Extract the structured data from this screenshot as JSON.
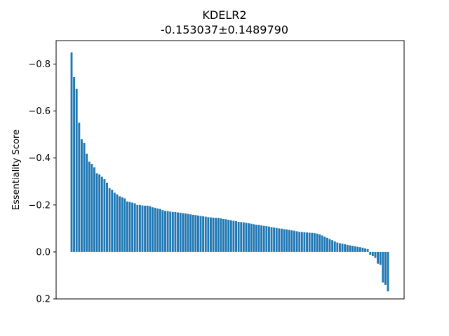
{
  "chart_data": {
    "type": "bar",
    "title": "KDELR2",
    "subtitle": "-0.153037±0.1489790",
    "xlabel": "",
    "ylabel": "Essentiality Score",
    "y_inverted": true,
    "ylim": [
      0.2,
      -0.9
    ],
    "yticks": [
      -0.8,
      -0.6,
      -0.4,
      -0.2,
      0.0,
      0.2
    ],
    "ytick_labels": [
      "−0.8",
      "−0.6",
      "−0.4",
      "−0.2",
      "0.0",
      "0.2"
    ],
    "bar_color": "#1f77b4",
    "grid": false,
    "values": [
      -0.85,
      -0.745,
      -0.695,
      -0.55,
      -0.48,
      -0.465,
      -0.418,
      -0.385,
      -0.375,
      -0.36,
      -0.335,
      -0.33,
      -0.32,
      -0.31,
      -0.295,
      -0.272,
      -0.265,
      -0.252,
      -0.245,
      -0.237,
      -0.233,
      -0.228,
      -0.215,
      -0.213,
      -0.21,
      -0.207,
      -0.2,
      -0.2,
      -0.198,
      -0.197,
      -0.197,
      -0.195,
      -0.19,
      -0.188,
      -0.185,
      -0.183,
      -0.178,
      -0.175,
      -0.174,
      -0.172,
      -0.17,
      -0.17,
      -0.168,
      -0.167,
      -0.165,
      -0.164,
      -0.162,
      -0.16,
      -0.158,
      -0.157,
      -0.155,
      -0.153,
      -0.152,
      -0.15,
      -0.148,
      -0.147,
      -0.146,
      -0.145,
      -0.145,
      -0.143,
      -0.14,
      -0.139,
      -0.137,
      -0.135,
      -0.133,
      -0.131,
      -0.128,
      -0.127,
      -0.126,
      -0.124,
      -0.122,
      -0.12,
      -0.118,
      -0.116,
      -0.115,
      -0.113,
      -0.111,
      -0.11,
      -0.108,
      -0.106,
      -0.104,
      -0.102,
      -0.1,
      -0.099,
      -0.097,
      -0.096,
      -0.094,
      -0.092,
      -0.09,
      -0.088,
      -0.086,
      -0.085,
      -0.084,
      -0.083,
      -0.082,
      -0.081,
      -0.08,
      -0.078,
      -0.075,
      -0.07,
      -0.065,
      -0.06,
      -0.055,
      -0.05,
      -0.045,
      -0.04,
      -0.037,
      -0.035,
      -0.033,
      -0.03,
      -0.028,
      -0.026,
      -0.024,
      -0.022,
      -0.02,
      -0.018,
      -0.015,
      -0.012,
      0.012,
      0.018,
      0.025,
      0.05,
      0.055,
      0.13,
      0.14,
      0.168
    ]
  }
}
